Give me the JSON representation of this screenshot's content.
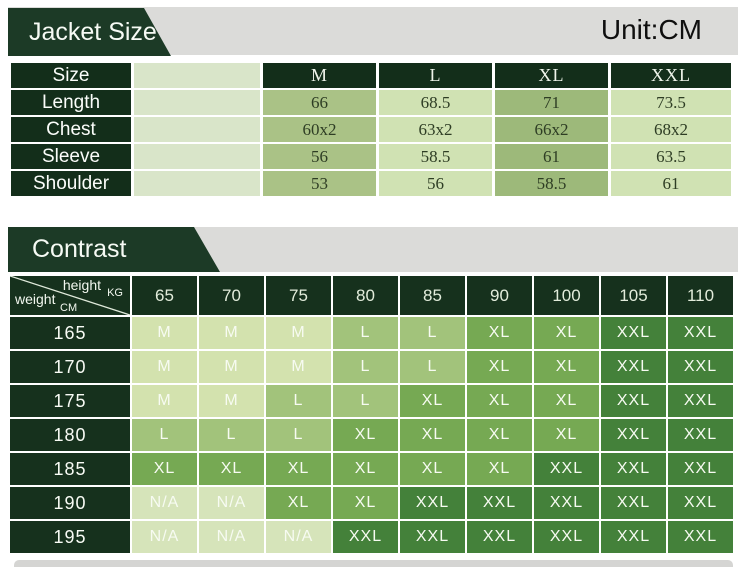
{
  "page": {
    "unit_label": "Unit:CM"
  },
  "colors": {
    "dark_green": "#132e1a",
    "banner_green": "#1c3a26",
    "band_gray": "#dbdbd9",
    "size_col_m": "#aac286",
    "size_col_l": "#d0e2b3",
    "size_col_xl": "#9db97a",
    "size_col_xxl": "#d0e2b3",
    "size_col_empty": "#d9e5c9",
    "contrast_cell_m": "#d3e2ae",
    "contrast_cell_l": "#a2c37b",
    "contrast_cell_xl": "#76a953",
    "contrast_cell_xxl": "#44813a",
    "contrast_cell_na": "#d6e4ba"
  },
  "chart_data": [
    {
      "type": "table",
      "title": "Jacket Size",
      "unit": "CM",
      "corner_header": "Size",
      "columns": [
        "M",
        "L",
        "XL",
        "XXL"
      ],
      "rows": [
        {
          "label": "Length",
          "values": [
            "66",
            "68.5",
            "71",
            "73.5"
          ]
        },
        {
          "label": "Chest",
          "values": [
            "60x2",
            "63x2",
            "66x2",
            "68x2"
          ]
        },
        {
          "label": "Sleeve",
          "values": [
            "56",
            "58.5",
            "61",
            "63.5"
          ]
        },
        {
          "label": "Shoulder",
          "values": [
            "53",
            "56",
            "58.5",
            "61"
          ]
        }
      ]
    },
    {
      "type": "table",
      "title": "Contrast",
      "corner": {
        "columns_label": "height",
        "columns_unit": "KG",
        "rows_label": "weight",
        "rows_unit": "CM"
      },
      "columns": [
        "65",
        "70",
        "75",
        "80",
        "85",
        "90",
        "100",
        "105",
        "110"
      ],
      "rows": [
        {
          "label": "165",
          "values": [
            "M",
            "M",
            "M",
            "L",
            "L",
            "XL",
            "XL",
            "XXL",
            "XXL"
          ]
        },
        {
          "label": "170",
          "values": [
            "M",
            "M",
            "M",
            "L",
            "L",
            "XL",
            "XL",
            "XXL",
            "XXL"
          ]
        },
        {
          "label": "175",
          "values": [
            "M",
            "M",
            "L",
            "L",
            "XL",
            "XL",
            "XL",
            "XXL",
            "XXL"
          ]
        },
        {
          "label": "180",
          "values": [
            "L",
            "L",
            "L",
            "XL",
            "XL",
            "XL",
            "XL",
            "XXL",
            "XXL"
          ]
        },
        {
          "label": "185",
          "values": [
            "XL",
            "XL",
            "XL",
            "XL",
            "XL",
            "XL",
            "XXL",
            "XXL",
            "XXL"
          ]
        },
        {
          "label": "190",
          "values": [
            "N/A",
            "N/A",
            "XL",
            "XL",
            "XXL",
            "XXL",
            "XXL",
            "XXL",
            "XXL"
          ]
        },
        {
          "label": "195",
          "values": [
            "N/A",
            "N/A",
            "N/A",
            "XXL",
            "XXL",
            "XXL",
            "XXL",
            "XXL",
            "XXL"
          ]
        }
      ]
    }
  ]
}
